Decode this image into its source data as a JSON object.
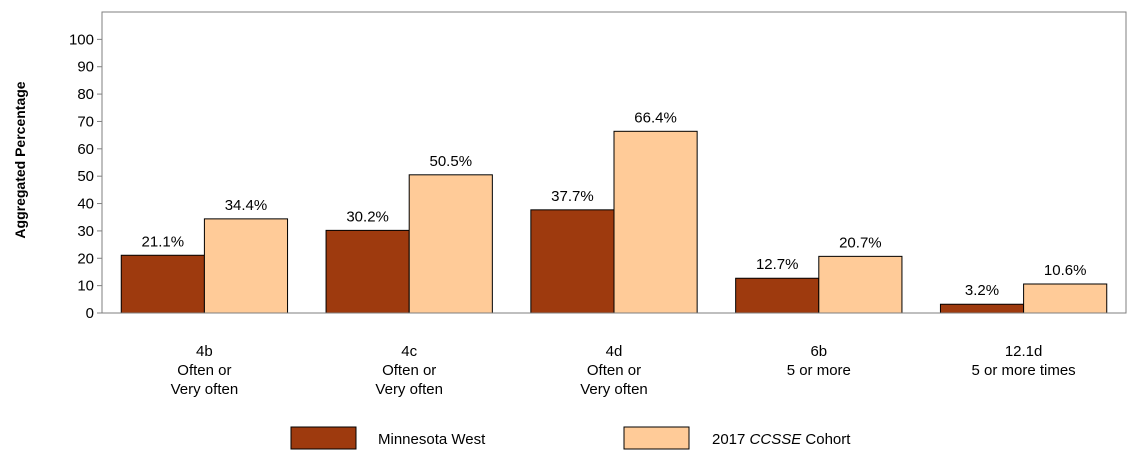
{
  "chart_data": {
    "type": "bar",
    "ylabel": "Aggregated Percentage",
    "ylim": [
      0,
      110
    ],
    "yticks": [
      0,
      10,
      20,
      30,
      40,
      50,
      60,
      70,
      80,
      90,
      100
    ],
    "grid": false,
    "legend_position": "bottom",
    "categories": [
      {
        "lines": [
          "4b",
          "Often or",
          "Very often"
        ]
      },
      {
        "lines": [
          "4c",
          "Often or",
          "Very often"
        ]
      },
      {
        "lines": [
          "4d",
          "Often or",
          "Very often"
        ]
      },
      {
        "lines": [
          "6b",
          "5 or more"
        ]
      },
      {
        "lines": [
          "12.1d",
          "5 or more times"
        ]
      }
    ],
    "series": [
      {
        "name": "Minnesota West",
        "legend_parts": [
          {
            "text": "Minnesota West",
            "italic": false
          }
        ],
        "color": "#9E3A0E",
        "values": [
          21.1,
          30.2,
          37.7,
          12.7,
          3.2
        ],
        "labels": [
          "21.1%",
          "30.2%",
          "37.7%",
          "12.7%",
          "3.2%"
        ]
      },
      {
        "name": "2017 CCSSE Cohort",
        "legend_parts": [
          {
            "text": "2017 ",
            "italic": false
          },
          {
            "text": "CCSSE",
            "italic": true
          },
          {
            "text": " Cohort",
            "italic": false
          }
        ],
        "color": "#FFCB98",
        "values": [
          34.4,
          50.5,
          66.4,
          20.7,
          10.6
        ],
        "labels": [
          "34.4%",
          "50.5%",
          "66.4%",
          "20.7%",
          "10.6%"
        ]
      }
    ]
  }
}
